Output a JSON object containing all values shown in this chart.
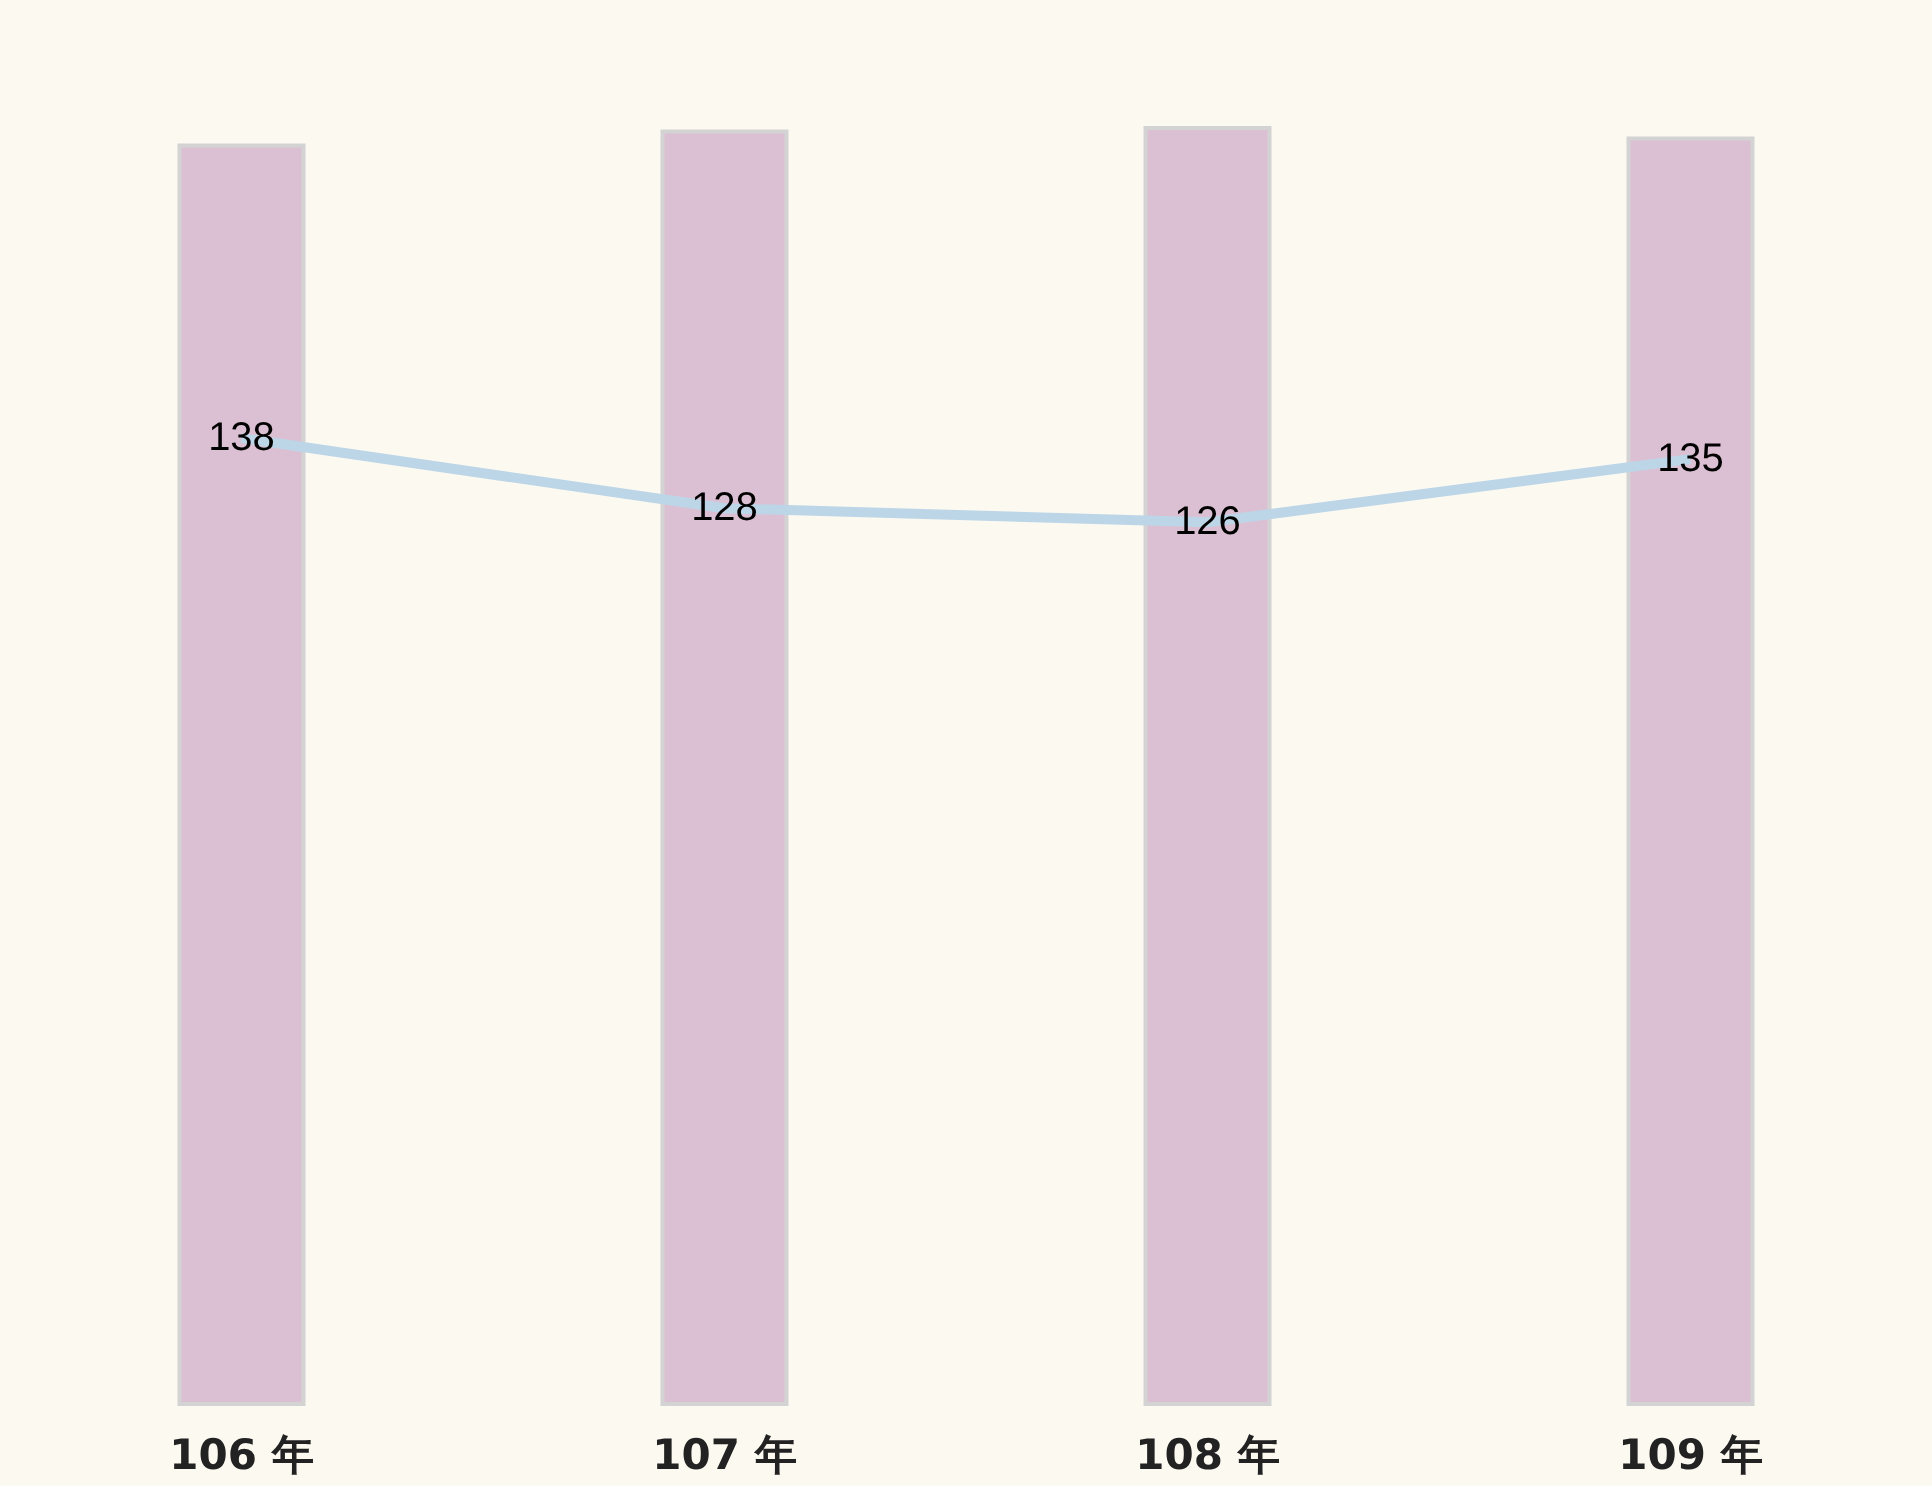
{
  "chart_data": {
    "type": "bar",
    "categories": [
      "106 年",
      "107 年",
      "108 年",
      "109 年"
    ],
    "grid": false,
    "series": [
      {
        "color": "#dbc0d3",
        "values": [
          180,
          182,
          182.5,
          181
        ]
      },
      {
        "type": "line",
        "color": "#bcd6e8",
        "values": [
          138,
          128,
          126,
          135
        ],
        "data_labels": true,
        "marker": "none"
      }
    ]
  }
}
